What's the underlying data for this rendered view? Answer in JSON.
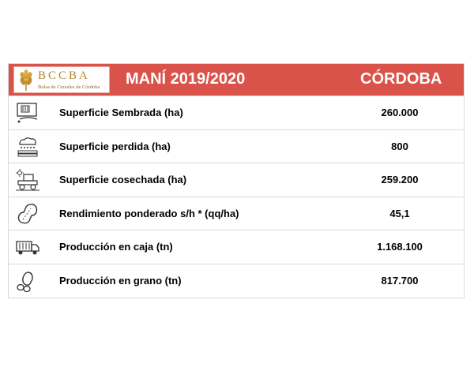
{
  "header": {
    "logo_text": "BCCBA",
    "logo_subtitle": "Bolsa de Cereales de Córdoba",
    "title": "MANÍ 2019/2020",
    "region": "CÓRDOBA",
    "colors": {
      "header_bg": "#d9534a",
      "logo_gold": "#b8862f"
    }
  },
  "rows": [
    {
      "icon": "planted-area-icon",
      "label": "Superficie Sembrada (ha)",
      "value": "260.000"
    },
    {
      "icon": "lost-area-icon",
      "label": "Superficie perdida (ha)",
      "value": "800"
    },
    {
      "icon": "harvester-icon",
      "label": "Superficie cosechada (ha)",
      "value": "259.200"
    },
    {
      "icon": "peanut-pod-icon",
      "label": "Rendimiento ponderado s/h * (qq/ha)",
      "value": "45,1"
    },
    {
      "icon": "truck-icon",
      "label": "Producción en caja (tn)",
      "value": "1.168.100"
    },
    {
      "icon": "peanut-kernels-icon",
      "label": "Producción en grano (tn)",
      "value": "817.700"
    }
  ]
}
